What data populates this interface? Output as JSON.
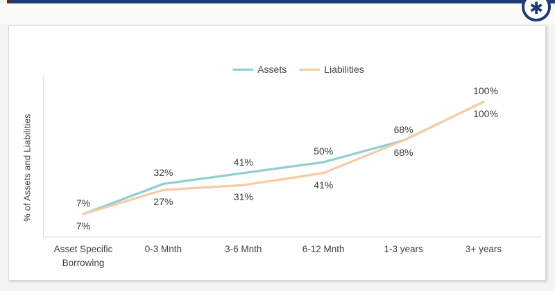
{
  "page": {
    "background": "#f3f3f1",
    "top_bar_color": "#1f3b73",
    "top_bar_accent_color": "#7a1d22"
  },
  "badge": {
    "glyph": "✱",
    "color": "#1f3b73"
  },
  "chart_data": {
    "type": "line",
    "title": "",
    "categories": [
      "Asset Specific Borrowing",
      "0-3 Mnth",
      "3-6 Mnth",
      "6-12 Mnth",
      "1-3 years",
      "3+ years"
    ],
    "series": [
      {
        "name": "Assets",
        "color": "#8fcfd3",
        "values": [
          7,
          32,
          41,
          50,
          68,
          100
        ],
        "labels": [
          "7%",
          "32%",
          "41%",
          "50%",
          "68%",
          "100%"
        ],
        "label_side": "above"
      },
      {
        "name": "Liabilities",
        "color": "#f7cba3",
        "values": [
          7,
          27,
          31,
          41,
          68,
          100
        ],
        "labels": [
          "7%",
          "27%",
          "31%",
          "41%",
          "68%",
          "100%"
        ],
        "label_side": "below"
      }
    ],
    "xlabel": "",
    "ylabel": "% of Assets and Liabilities",
    "legend_position": "top-center",
    "legend_entries": [
      "Assets",
      "Liabilities"
    ],
    "grid": false,
    "y_axis_tick_labels_visible": false,
    "data_label_format": "{value}%",
    "axis_color": "#d9d9d9",
    "label_color": "#3f3f3f"
  }
}
